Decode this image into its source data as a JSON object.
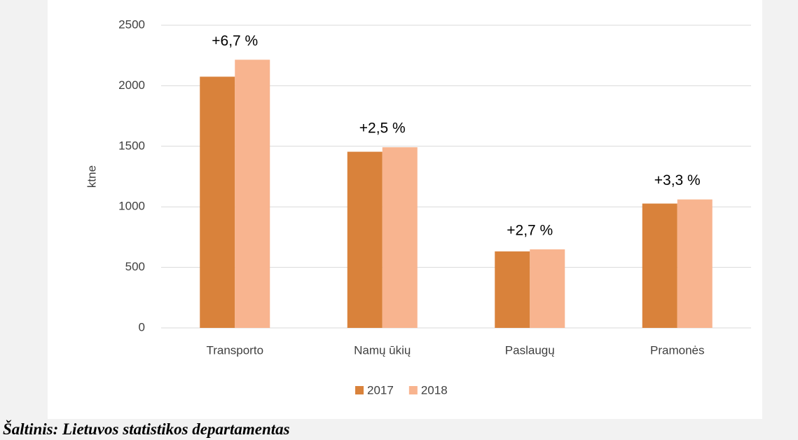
{
  "chart_data": {
    "type": "bar",
    "ylabel": "ktne",
    "categories": [
      "Transporto",
      "Namų ūkių",
      "Paslaugų",
      "Pramonės"
    ],
    "series": [
      {
        "name": "2017",
        "color": "#d9823b",
        "values": [
          2075,
          1455,
          632,
          1027
        ]
      },
      {
        "name": "2018",
        "color": "#f8b48f",
        "values": [
          2215,
          1492,
          649,
          1061
        ]
      }
    ],
    "annotations": [
      "+6,7 %",
      "+2,5 %",
      "+2,7 %",
      "+3,3 %"
    ],
    "ylim": [
      0,
      2500
    ],
    "yticks": [
      0,
      500,
      1000,
      1500,
      2000,
      2500
    ],
    "grid": true,
    "legend": "bottom"
  },
  "source": "Šaltinis: Lietuvos statistikos departamentas"
}
